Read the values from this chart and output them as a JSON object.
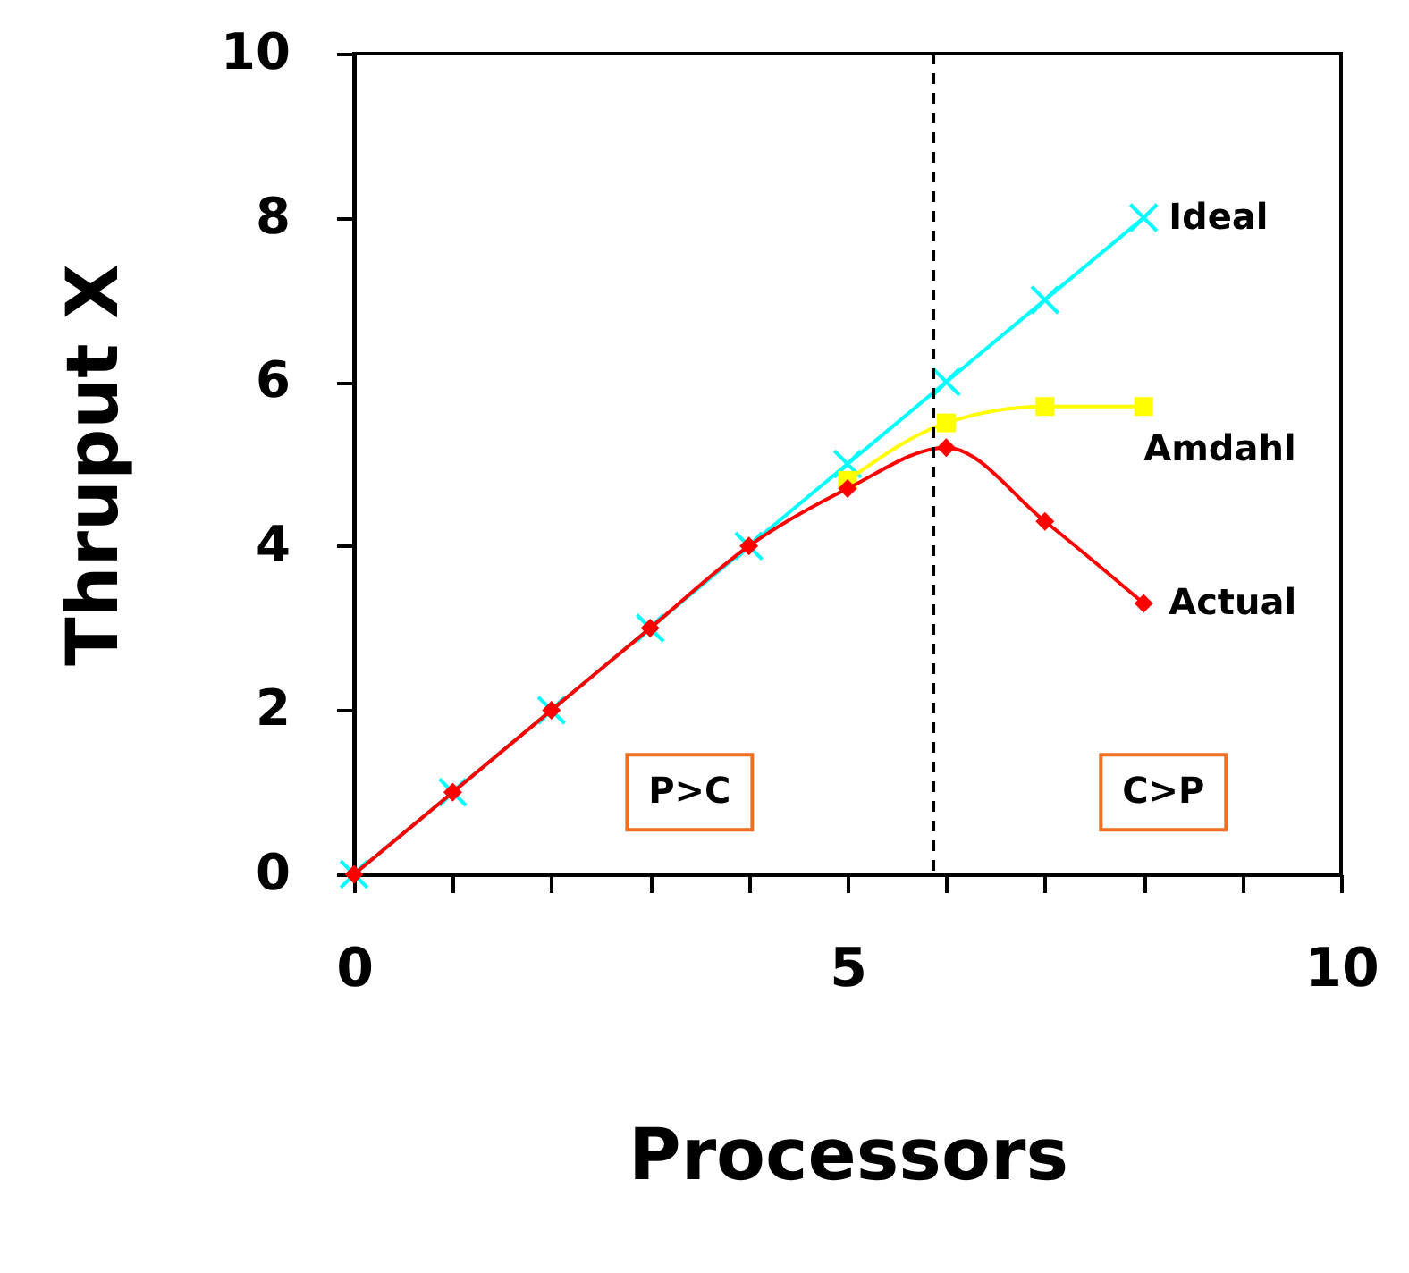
{
  "chart_data": {
    "type": "line",
    "xlabel": "Processors",
    "ylabel": "Thruput X",
    "xlim": [
      0,
      10
    ],
    "ylim": [
      0,
      10
    ],
    "xticks": [
      0,
      {
        "value": 1,
        "label": null
      },
      {
        "value": 2,
        "label": null
      },
      {
        "value": 3,
        "label": null
      },
      {
        "value": 4,
        "label": null
      },
      5,
      {
        "value": 6,
        "label": null
      },
      {
        "value": 7,
        "label": null
      },
      {
        "value": 8,
        "label": null
      },
      {
        "value": 9,
        "label": null
      },
      10
    ],
    "yticks": [
      0,
      2,
      4,
      6,
      8,
      10
    ],
    "series": [
      {
        "name": "Ideal",
        "color": "#00ffff",
        "marker": "cross",
        "x": [
          0,
          1,
          2,
          3,
          4,
          5,
          6,
          7,
          8
        ],
        "values": [
          0,
          1,
          2,
          3,
          4,
          5,
          6,
          7,
          8
        ]
      },
      {
        "name": "Amdahl",
        "color": "#ffff00",
        "marker": "square",
        "x": [
          5,
          6,
          7,
          8
        ],
        "values": [
          4.8,
          5.5,
          5.7,
          5.7
        ]
      },
      {
        "name": "Actual",
        "color": "#ff0000",
        "marker": "diamond",
        "x": [
          0,
          1,
          2,
          3,
          4,
          5,
          6,
          7,
          8
        ],
        "values": [
          0,
          1,
          2,
          3,
          4,
          4.7,
          5.2,
          4.3,
          3.3
        ]
      }
    ],
    "ref_lines": [
      {
        "axis": "x",
        "value": 5.87,
        "color": "#000000",
        "line_style": "dashed"
      }
    ],
    "annotations": [
      "P>C",
      "C>P"
    ]
  }
}
